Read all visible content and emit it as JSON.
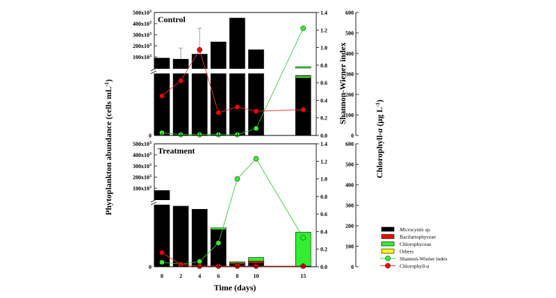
{
  "chart_data": [
    {
      "type": "bar",
      "title": "Control",
      "days": [
        0,
        2,
        4,
        6,
        8,
        10,
        15
      ],
      "high_total": [
        90000,
        80000,
        125000,
        235000,
        450000,
        165000,
        0
      ],
      "low": {
        "Microcystis sp.": [
          1,
          1,
          1,
          1,
          1,
          1,
          0.93
        ],
        "Bacilariophyceae": [
          0,
          0,
          0,
          0,
          0,
          0,
          0
        ],
        "Chlorophyceae": [
          0,
          0,
          0,
          0,
          0,
          0,
          0.03
        ],
        "Others": [
          0,
          0,
          0,
          0,
          0,
          0,
          0.01
        ]
      },
      "error_bar": {
        "days": [
          2,
          4
        ],
        "upper": [
          180000,
          360000
        ]
      },
      "shannon_wiener": [
        0.03,
        0.01,
        0.01,
        0.01,
        0.01,
        0.08,
        1.22
      ],
      "chlorophyll_a": [
        193,
        267,
        418,
        111,
        139,
        118,
        126
      ]
    },
    {
      "type": "bar",
      "title": "Treatment",
      "days": [
        0,
        2,
        4,
        6,
        8,
        10,
        15
      ],
      "high_total": [
        80000,
        0,
        0,
        0,
        0,
        0,
        0
      ],
      "low": {
        "Microcystis sp.": [
          1,
          0.98,
          0.93,
          0.6,
          0.04,
          0.06,
          0
        ],
        "Bacilariophyceae": [
          0,
          0,
          0,
          0,
          0.02,
          0.03,
          0.01
        ],
        "Chlorophyceae": [
          0,
          0,
          0,
          0.03,
          0.02,
          0.06,
          0.55
        ],
        "Others": [
          0,
          0,
          0,
          0,
          0,
          0,
          0
        ]
      },
      "shannon_wiener": [
        0.05,
        0.03,
        0.06,
        0.27,
        1.0,
        1.23,
        0.33
      ],
      "chlorophyll_a": [
        69,
        11,
        3,
        3,
        3,
        3,
        3
      ]
    }
  ],
  "axes": {
    "x_title": "Time (days)",
    "x_ticks": [
      "0",
      "2",
      "4",
      "6",
      "8",
      "10",
      "15"
    ],
    "left_title": "Phytoplankton abundance (cells mL",
    "left_title_sup": "-1",
    "left_title_end": ")",
    "left_ticks": [
      {
        "base": "500x10",
        "exp": "3"
      },
      {
        "base": "400x10",
        "exp": "3"
      },
      {
        "base": "300x10",
        "exp": "3"
      },
      {
        "base": "200x10",
        "exp": "3"
      },
      {
        "base": "100x10",
        "exp": "3"
      }
    ],
    "left_zero": "0",
    "sw_title": "Shannon-Wiener index",
    "sw_ticks": [
      "0.0",
      "0.2",
      "0.4",
      "0.6",
      "0.8",
      "1.0",
      "1.2",
      "1.4"
    ],
    "chl_title_pre": "Chlorophyll-",
    "chl_title_italic": "a",
    "chl_title_mid": " (μg L",
    "chl_title_sup": "-1",
    "chl_title_end": ")",
    "chl_ticks": [
      "0",
      "100",
      "200",
      "300",
      "400",
      "500",
      "600"
    ]
  },
  "legend": [
    {
      "label": "Microcystis",
      "suffix": " sp.",
      "italic": true,
      "kind": "box",
      "color": "#000000"
    },
    {
      "label": "Bacilariophyceae",
      "suffix": "",
      "italic": false,
      "kind": "box",
      "color": "#ff0000"
    },
    {
      "label": "Chlorophyceae",
      "suffix": "",
      "italic": false,
      "kind": "box",
      "color": "#33ee33"
    },
    {
      "label": "Others",
      "suffix": "",
      "italic": false,
      "kind": "box",
      "color": "#ffff00"
    },
    {
      "label": "Shannon-Wiener index",
      "suffix": "",
      "italic": false,
      "kind": "line",
      "color": "#33ee33",
      "line": "#33cc33"
    },
    {
      "label": "Chlorophyll-",
      "suffix": "a",
      "italic": false,
      "suffix_italic": true,
      "kind": "line",
      "color": "#ff0000",
      "line": "#ff3333"
    }
  ],
  "colors": {
    "microcystis": "#000000",
    "bacilariophyceae": "#ff0000",
    "chlorophyceae": "#33ee33",
    "others": "#ffff00",
    "sw_line": "#33cc33",
    "sw_marker": "#33ee33",
    "chl_line": "#ff3333",
    "chl_marker": "#ff0000"
  }
}
